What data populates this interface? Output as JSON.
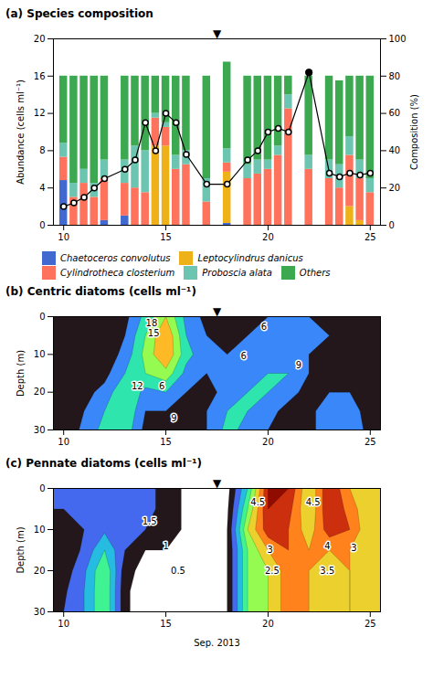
{
  "chart_data": [
    {
      "type": "bar",
      "stacked": true,
      "title": "(a) Species composition",
      "x": [
        10,
        10.5,
        11,
        11.5,
        12,
        13,
        13.5,
        14,
        14.5,
        15,
        15.5,
        16,
        17,
        18,
        19,
        19.5,
        20,
        20.5,
        21,
        22,
        23,
        23.5,
        24,
        24.5,
        25
      ],
      "xlim": [
        9.5,
        25.5
      ],
      "xticks": [
        10,
        15,
        20,
        25
      ],
      "ylim": [
        0,
        20
      ],
      "yticks": [
        0,
        4,
        8,
        12,
        16,
        20
      ],
      "y_label": "Abundance (cells ml⁻¹)",
      "y2lim": [
        0,
        100
      ],
      "y2ticks": [
        0,
        20,
        40,
        60,
        80,
        100
      ],
      "y2_label": "Composition (%)",
      "legend": "bottom",
      "series": [
        {
          "name": "Chaetoceros convolutus",
          "values": [
            4.8,
            0,
            0,
            0,
            0.5,
            1.0,
            0,
            0,
            0,
            0,
            0,
            0,
            0,
            0.2,
            0,
            0,
            0,
            0,
            0,
            0,
            0,
            0,
            0,
            0,
            0
          ]
        },
        {
          "name": "Leptocylindrus danicus",
          "values": [
            0,
            0,
            0,
            0,
            0,
            0,
            0,
            0,
            8.5,
            8.5,
            0,
            0,
            0,
            5.5,
            0,
            0,
            0,
            0,
            0,
            0,
            0,
            0,
            2.0,
            0.5,
            0
          ]
        },
        {
          "name": "Cylindrotheca closterium",
          "values": [
            2.5,
            3.0,
            4.5,
            3.0,
            4.5,
            3.5,
            4.0,
            3.5,
            3.0,
            2.0,
            6.0,
            6.5,
            2.5,
            1.0,
            5.0,
            5.5,
            6.0,
            7.5,
            12.5,
            6.0,
            5.0,
            4.0,
            5.5,
            4.5,
            3.5
          ]
        },
        {
          "name": "Proboscia alata",
          "values": [
            1.5,
            1.5,
            1.5,
            1.5,
            2.0,
            2.5,
            4.5,
            4.5,
            0.5,
            0.5,
            1.5,
            1.5,
            2.5,
            1.5,
            1.5,
            1.5,
            1.0,
            1.0,
            1.5,
            1.5,
            2.0,
            2.5,
            2.0,
            2.0,
            1.5
          ]
        },
        {
          "name": "Others",
          "values": [
            7.2,
            11.5,
            10.0,
            11.5,
            9.0,
            9.0,
            7.5,
            8.0,
            4.0,
            5.0,
            8.5,
            8.0,
            11.0,
            9.3,
            9.5,
            9.0,
            9.0,
            7.5,
            2.0,
            8.5,
            9.0,
            9.0,
            6.5,
            9.0,
            11.0
          ]
        },
        {
          "type": "line",
          "axis": "y2",
          "marker": "circle",
          "values": [
            10,
            12,
            15,
            20,
            25,
            30,
            35,
            55,
            40,
            60,
            55,
            38,
            22,
            22,
            35,
            40,
            50,
            52,
            50,
            82,
            28,
            26,
            28,
            27,
            28
          ],
          "highlight": {
            "x": 22,
            "value": 82
          }
        }
      ],
      "annotations": [
        {
          "text": "▼",
          "x": 17.5
        }
      ]
    },
    {
      "type": "contour",
      "title": "(b) Centric diatoms (cells ml⁻¹)",
      "x": [
        10,
        11,
        12,
        13,
        14,
        15,
        16,
        17,
        18,
        19,
        20,
        21,
        22,
        23,
        24,
        25
      ],
      "y": [
        0,
        5,
        10,
        15,
        20,
        25,
        30
      ],
      "z": [
        [
          3,
          3,
          4,
          5,
          10,
          15,
          8,
          5,
          4,
          5,
          6,
          7,
          6,
          5,
          5,
          4
        ],
        [
          3,
          3,
          4,
          6,
          12,
          18,
          9,
          6,
          5,
          6,
          7,
          8,
          7,
          6,
          5,
          3
        ],
        [
          3,
          3,
          4,
          7,
          13,
          18,
          10,
          7,
          6,
          6,
          7,
          8,
          6,
          5,
          5,
          3
        ],
        [
          3,
          4,
          5,
          9,
          12,
          14,
          8,
          6,
          6,
          6,
          9,
          9,
          6,
          5,
          5,
          3
        ],
        [
          3,
          5,
          7,
          12,
          8,
          9,
          6,
          5,
          7,
          9,
          9,
          7,
          5,
          6,
          6,
          4
        ],
        [
          3,
          6,
          9,
          12,
          6,
          6,
          5,
          6,
          9,
          9,
          7,
          5,
          5,
          8,
          7,
          5
        ],
        [
          3,
          7,
          10,
          11,
          5,
          5,
          5,
          6,
          10,
          8,
          6,
          5,
          5,
          8,
          8,
          5
        ]
      ],
      "levels": [
        3,
        6,
        9,
        12,
        15,
        18,
        21
      ],
      "xlim": [
        9.5,
        25.5
      ],
      "xticks": [
        10,
        15,
        20,
        25
      ],
      "ylim": [
        30,
        0
      ],
      "yticks": [
        0,
        10,
        20,
        30
      ],
      "y_label": "Depth (m)",
      "annotations": [
        {
          "text": "▼",
          "x": 17.5
        },
        {
          "text": "18",
          "x": 14.3,
          "y": 1.8
        },
        {
          "text": "15",
          "x": 14.4,
          "y": 4.5
        },
        {
          "text": "12",
          "x": 13.6,
          "y": 18.5
        },
        {
          "text": "6",
          "x": 14.8,
          "y": 18.5
        },
        {
          "text": "9",
          "x": 15.4,
          "y": 27.0
        },
        {
          "text": "6",
          "x": 18.8,
          "y": 10.5
        },
        {
          "text": "6",
          "x": 19.8,
          "y": 2.8
        },
        {
          "text": "9",
          "x": 21.5,
          "y": 13.0
        }
      ]
    },
    {
      "type": "contour",
      "title": "(c) Pennate diatoms (cells ml⁻¹)",
      "x": [
        10,
        11,
        12,
        13,
        14,
        15,
        16,
        17,
        18,
        19,
        20,
        21,
        22,
        23,
        24,
        25
      ],
      "y": [
        0,
        5,
        10,
        15,
        20,
        25,
        30
      ],
      "z": [
        [
          1.2,
          1.0,
          1.0,
          1.2,
          1.2,
          0.8,
          0.4,
          0.3,
          0.3,
          2.0,
          4.5,
          4.5,
          3.0,
          4.5,
          3.5,
          3.0
        ],
        [
          1.0,
          1.0,
          1.1,
          1.5,
          1.2,
          0.8,
          0.4,
          0.3,
          0.4,
          2.5,
          4.5,
          4.2,
          3.0,
          4.5,
          3.8,
          3.0
        ],
        [
          0.8,
          1.0,
          1.4,
          1.5,
          1.0,
          0.8,
          0.4,
          0.4,
          0.5,
          3.0,
          4.3,
          4.0,
          3.2,
          4.3,
          4.0,
          3.0
        ],
        [
          0.6,
          1.1,
          2.0,
          1.0,
          0.5,
          0.5,
          0.4,
          0.4,
          0.5,
          2.5,
          3.5,
          4.0,
          3.5,
          3.5,
          3.5,
          3.0
        ],
        [
          0.7,
          1.4,
          2.5,
          0.7,
          0.3,
          0.3,
          0.4,
          0.4,
          0.5,
          2.5,
          3.0,
          3.8,
          3.5,
          3.0,
          3.5,
          3.0
        ],
        [
          0.9,
          1.5,
          2.5,
          0.6,
          0.2,
          0.2,
          0.4,
          0.4,
          0.5,
          2.5,
          3.0,
          3.8,
          3.5,
          3.0,
          3.5,
          3.0
        ],
        [
          1.0,
          1.5,
          2.5,
          0.6,
          0.2,
          0.2,
          0.4,
          0.4,
          0.5,
          2.5,
          3.0,
          3.8,
          3.5,
          3.0,
          3.5,
          3.0
        ]
      ],
      "levels": [
        0.5,
        1.0,
        1.5,
        2.0,
        2.5,
        3.0,
        3.5,
        4.0,
        4.5
      ],
      "xlim": [
        9.5,
        25.5
      ],
      "xticks": [
        10,
        15,
        20,
        25
      ],
      "ylim": [
        30,
        0
      ],
      "yticks": [
        0,
        10,
        20,
        30
      ],
      "x_label": "Sep. 2013",
      "y_label": "Depth (m)",
      "annotations": [
        {
          "text": "▼",
          "x": 17.5
        },
        {
          "text": "1.5",
          "x": 14.2,
          "y": 8.0
        },
        {
          "text": "1",
          "x": 15.0,
          "y": 14.0
        },
        {
          "text": "0.5",
          "x": 15.6,
          "y": 20.0
        },
        {
          "text": "4.5",
          "x": 19.5,
          "y": 3.5
        },
        {
          "text": "3",
          "x": 20.1,
          "y": 15.0
        },
        {
          "text": "2.5",
          "x": 20.2,
          "y": 20.0
        },
        {
          "text": "4.5",
          "x": 22.2,
          "y": 3.5
        },
        {
          "text": "4",
          "x": 22.9,
          "y": 14.0
        },
        {
          "text": "3.5",
          "x": 22.9,
          "y": 20.0
        },
        {
          "text": "3",
          "x": 24.2,
          "y": 14.5
        }
      ]
    }
  ]
}
